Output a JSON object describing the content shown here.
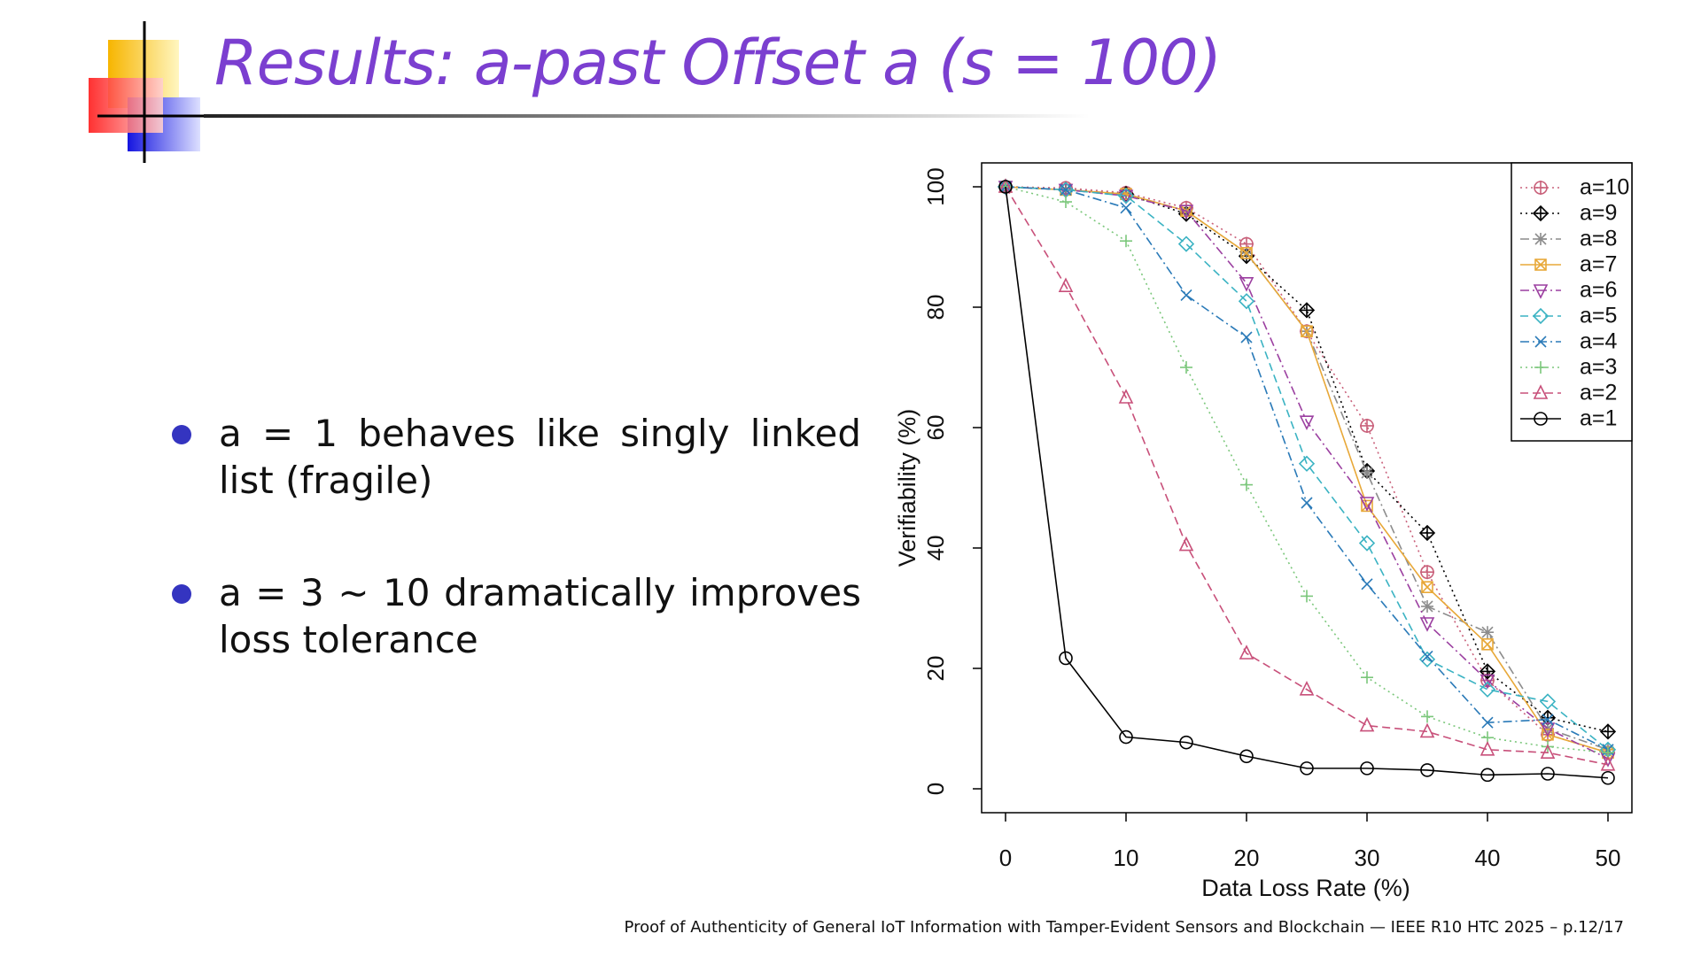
{
  "slide": {
    "title": "Results: a-past Offset a (s = 100)",
    "bullets": [
      "a = 1 behaves like singly linked list (fragile)",
      "a = 3 ∼ 10 dramatically improves loss tolerance"
    ],
    "footer": "Proof of Authenticity of General IoT Information with Tamper-Evident Sensors and Blockchain — IEEE R10 HTC 2025 – p.12/17"
  },
  "chart_data": {
    "type": "line",
    "x_label": "Data Loss Rate (%)",
    "y_label": "Verifiability (%)",
    "x": [
      0,
      5,
      10,
      15,
      20,
      25,
      30,
      35,
      40,
      45,
      50
    ],
    "xlim": [
      0,
      50
    ],
    "xticks": [
      0,
      10,
      20,
      30,
      40,
      50
    ],
    "ylim": [
      0,
      100
    ],
    "yticks": [
      0,
      20,
      40,
      60,
      80,
      100
    ],
    "legend": "top-right",
    "series": [
      {
        "name": "a=10",
        "color": "#c9607a",
        "marker": "circle-plus",
        "line_style": "dotted",
        "values": [
          100,
          99.8,
          99,
          96.5,
          90.5,
          76,
          60.3,
          36,
          18,
          9,
          6
        ]
      },
      {
        "name": "a=9",
        "color": "#000000",
        "marker": "diamond-plus",
        "line_style": "dotted",
        "values": [
          100,
          99.5,
          98.8,
          95.5,
          88.5,
          79.5,
          52.8,
          42.5,
          19.5,
          11.8,
          9.5
        ]
      },
      {
        "name": "a=8",
        "color": "#8c8c8c",
        "marker": "asterisk",
        "line_style": "dashdot",
        "values": [
          100,
          99.5,
          98.8,
          96,
          89,
          76,
          52.5,
          30.3,
          26,
          10,
          6.5
        ]
      },
      {
        "name": "a=7",
        "color": "#e8a838",
        "marker": "square-x",
        "line_style": "solid",
        "values": [
          100,
          99.5,
          98.8,
          96,
          89,
          76,
          47,
          33.5,
          24,
          9,
          6
        ]
      },
      {
        "name": "a=6",
        "color": "#9b3fa0",
        "marker": "triangle-down",
        "line_style": "dashdot",
        "values": [
          100,
          99.5,
          98.5,
          96,
          84,
          61,
          47.5,
          27.5,
          18,
          10,
          5
        ]
      },
      {
        "name": "a=5",
        "color": "#3bb3c3",
        "marker": "diamond",
        "line_style": "dashed",
        "values": [
          100,
          99.5,
          98.5,
          90.5,
          81,
          54,
          40.8,
          21.5,
          16.5,
          14.5,
          6.5
        ]
      },
      {
        "name": "a=4",
        "color": "#2a7ab8",
        "marker": "x",
        "line_style": "dashdot",
        "values": [
          100,
          99.5,
          96.5,
          82,
          75,
          47.5,
          34,
          22,
          11,
          11.5,
          6.5
        ]
      },
      {
        "name": "a=3",
        "color": "#7bc77b",
        "marker": "plus",
        "line_style": "dotted",
        "values": [
          100,
          97.5,
          91,
          70,
          50.5,
          32,
          18.5,
          12,
          8.5,
          7,
          6
        ]
      },
      {
        "name": "a=2",
        "color": "#c8507a",
        "marker": "triangle",
        "line_style": "dashed",
        "values": [
          100,
          83.5,
          65,
          40.5,
          22.5,
          16.5,
          10.5,
          9.5,
          6.5,
          6,
          4
        ]
      },
      {
        "name": "a=1",
        "color": "#000000",
        "marker": "circle",
        "line_style": "solid",
        "values": [
          100,
          21.7,
          8.6,
          7.7,
          5.4,
          3.4,
          3.4,
          3.1,
          2.3,
          2.5,
          1.8
        ]
      }
    ]
  }
}
